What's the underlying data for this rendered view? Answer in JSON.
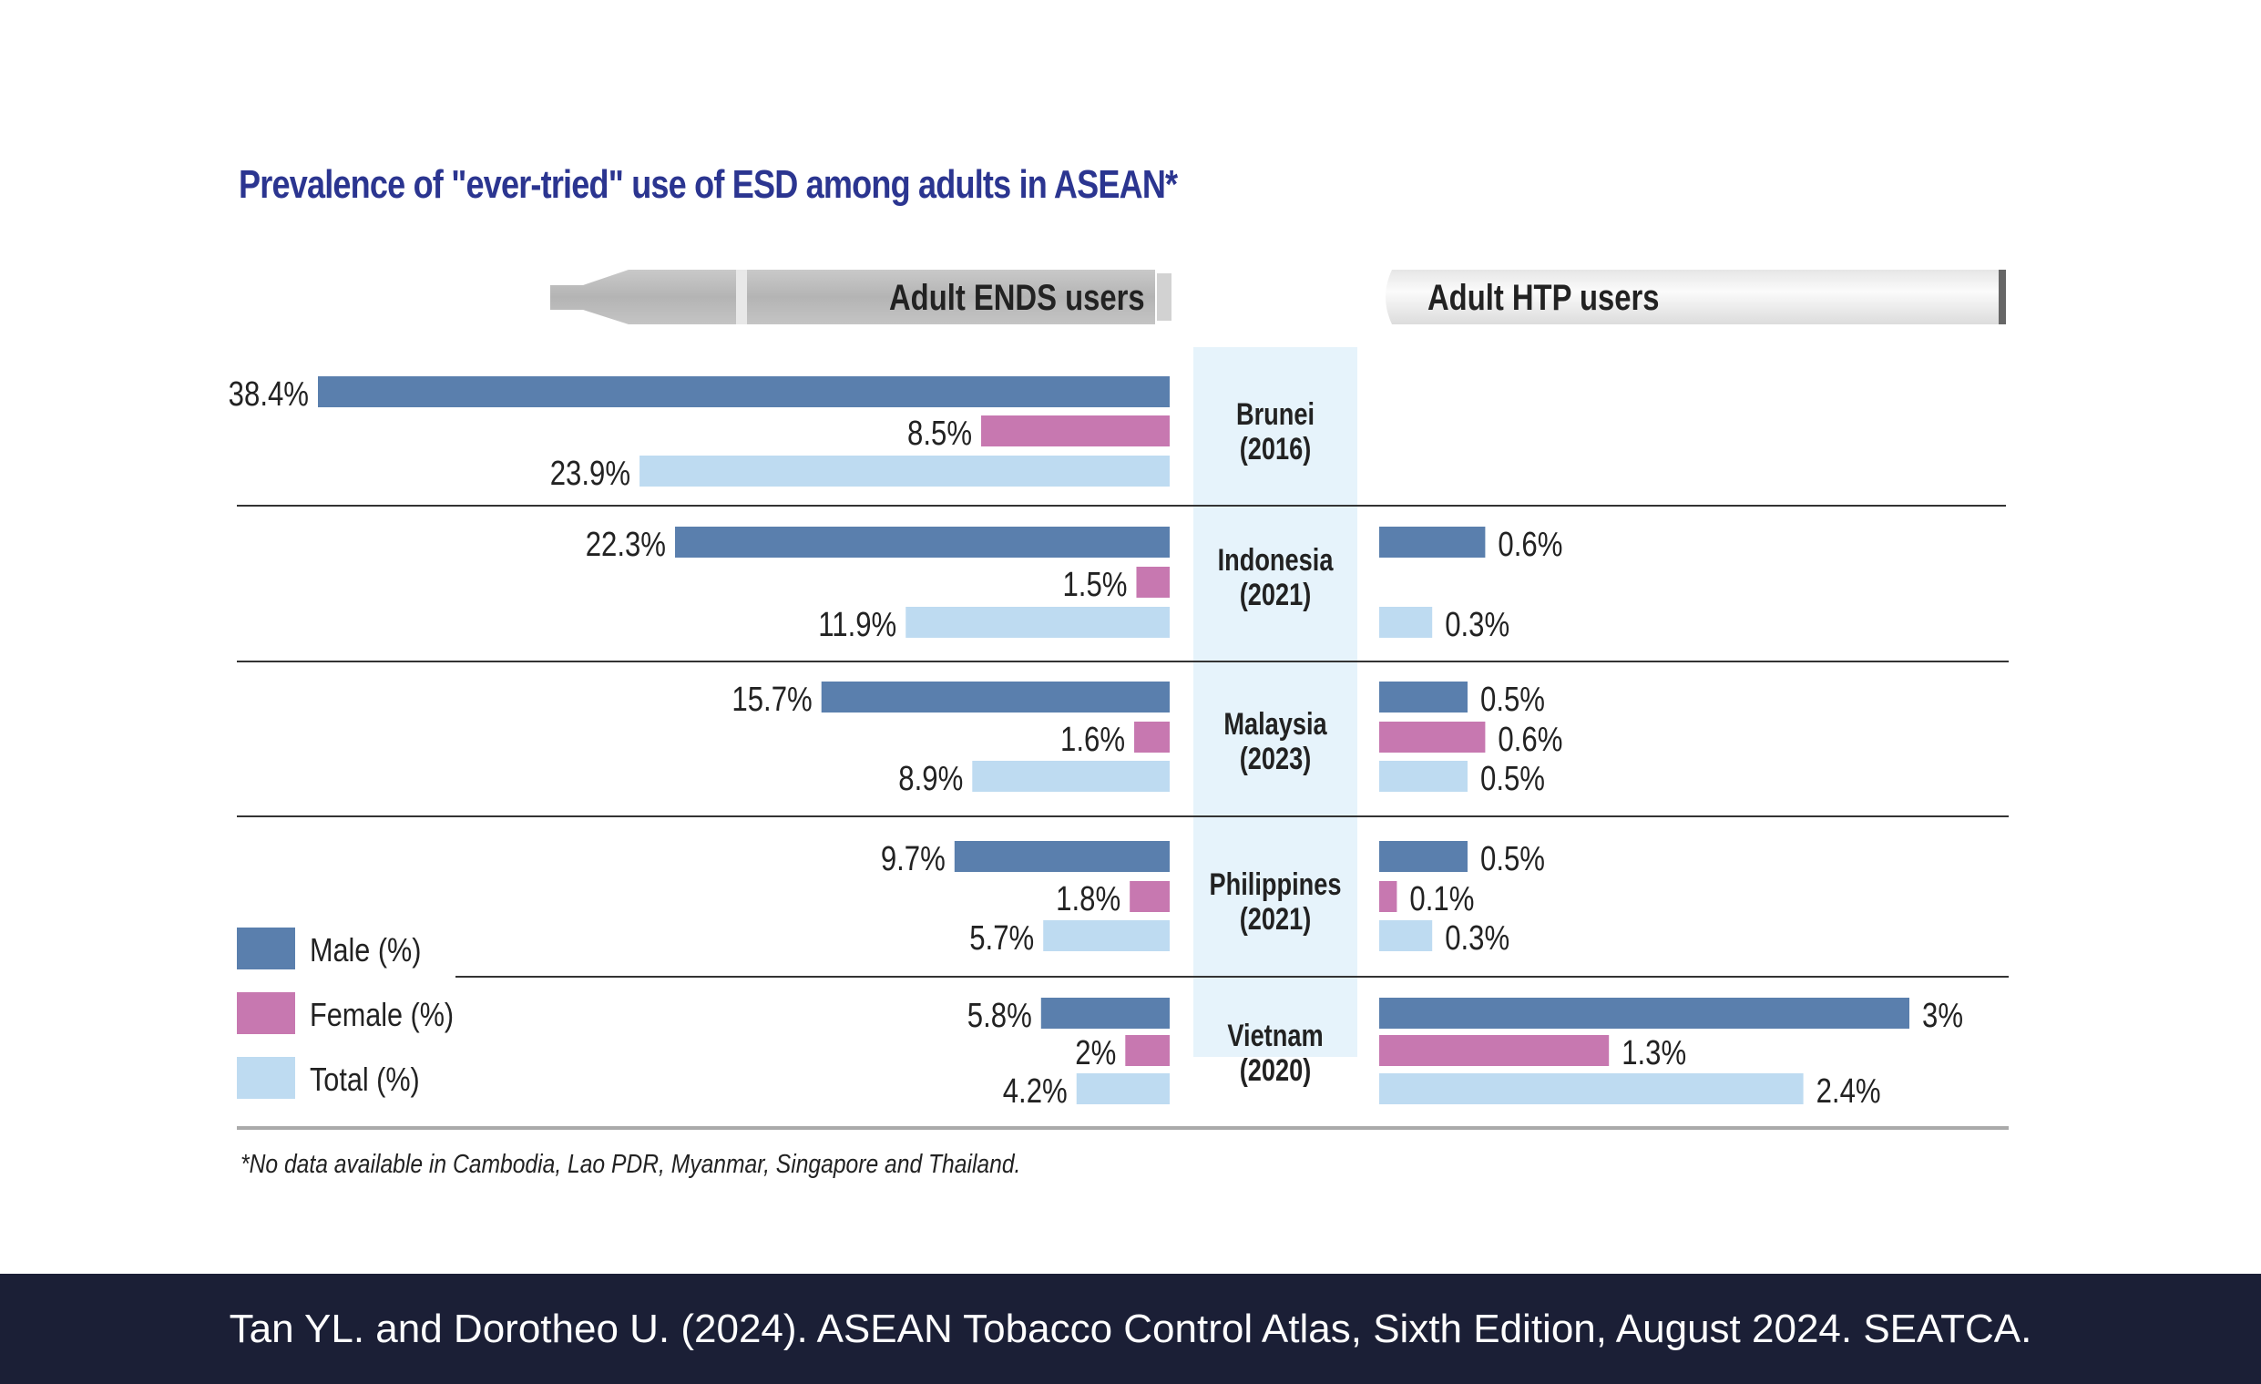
{
  "chart_data": {
    "type": "bar",
    "title": "Prevalence of \"ever-tried\" use of ESD among adults in ASEAN*",
    "footnote": "*No data available in Cambodia, Lao PDR, Myanmar, Singapore and Thailand.",
    "panels": {
      "ends": "Adult ENDS users",
      "htp": "Adult HTP users"
    },
    "legend": [
      {
        "name": "Male (%)",
        "color": "#5a7fad"
      },
      {
        "name": "Female (%)",
        "color": "#c778b0"
      },
      {
        "name": "Total (%)",
        "color": "#bedbf1"
      }
    ],
    "countries": [
      {
        "name": "Brunei",
        "year": "(2016)",
        "ends": {
          "male": 38.4,
          "female": 8.5,
          "total": 23.9
        },
        "ends_labels": {
          "male": "38.4%",
          "female": "8.5%",
          "total": "23.9%"
        },
        "htp": null,
        "htp_labels": null
      },
      {
        "name": "Indonesia",
        "year": "(2021)",
        "ends": {
          "male": 22.3,
          "female": 1.5,
          "total": 11.9
        },
        "ends_labels": {
          "male": "22.3%",
          "female": "1.5%",
          "total": "11.9%"
        },
        "htp": {
          "male": 0.6,
          "female": null,
          "total": 0.3
        },
        "htp_labels": {
          "male": "0.6%",
          "female": null,
          "total": "0.3%"
        }
      },
      {
        "name": "Malaysia",
        "year": "(2023)",
        "ends": {
          "male": 15.7,
          "female": 1.6,
          "total": 8.9
        },
        "ends_labels": {
          "male": "15.7%",
          "female": "1.6%",
          "total": "8.9%"
        },
        "htp": {
          "male": 0.5,
          "female": 0.6,
          "total": 0.5
        },
        "htp_labels": {
          "male": "0.5%",
          "female": "0.6%",
          "total": "0.5%"
        }
      },
      {
        "name": "Philippines",
        "year": "(2021)",
        "ends": {
          "male": 9.7,
          "female": 1.8,
          "total": 5.7
        },
        "ends_labels": {
          "male": "9.7%",
          "female": "1.8%",
          "total": "5.7%"
        },
        "htp": {
          "male": 0.5,
          "female": 0.1,
          "total": 0.3
        },
        "htp_labels": {
          "male": "0.5%",
          "female": "0.1%",
          "total": "0.3%"
        }
      },
      {
        "name": "Vietnam",
        "year": "(2020)",
        "ends": {
          "male": 5.8,
          "female": 2.0,
          "total": 4.2
        },
        "ends_labels": {
          "male": "5.8%",
          "female": "2%",
          "total": "4.2%"
        },
        "htp": {
          "male": 3.0,
          "female": 1.3,
          "total": 2.4
        },
        "htp_labels": {
          "male": "3%",
          "female": "1.3%",
          "total": "2.4%"
        }
      }
    ]
  },
  "footer": {
    "citation": "Tan YL. and Dorotheo U. (2024). ASEAN Tobacco Control Atlas, Sixth Edition, August 2024. SEATCA."
  }
}
